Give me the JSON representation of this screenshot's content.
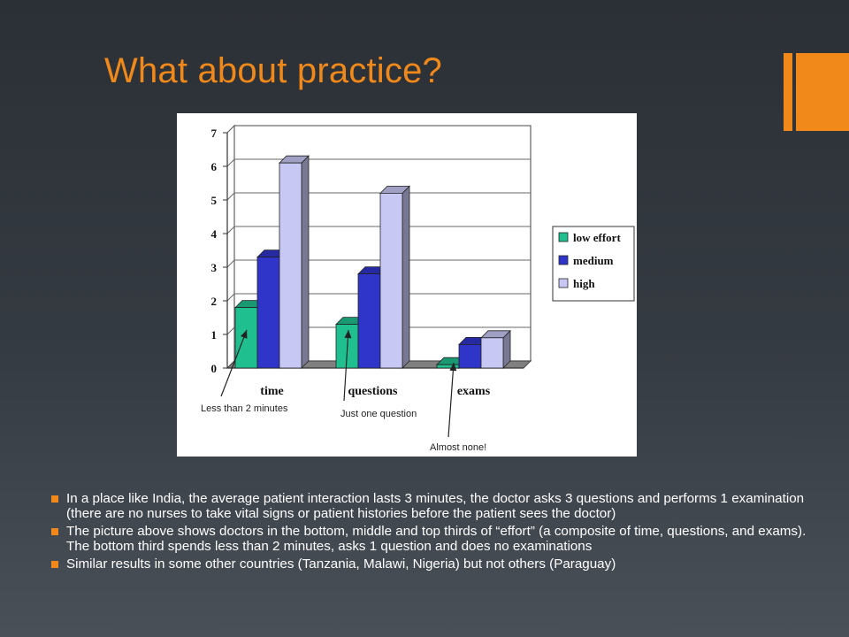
{
  "slide": {
    "title": "What about practice?",
    "accent_color": "#f0891a",
    "bullets": [
      "In a place like India, the average patient interaction lasts 3 minutes, the doctor asks 3 questions and performs 1 examination (there are no nurses to take vital signs or patient histories before the patient sees the doctor)",
      "The picture above shows doctors in the bottom, middle and top thirds of “effort” (a composite of time, questions, and exams). The bottom third spends less than 2 minutes, asks 1 question and does no examinations",
      "Similar results in some other countries (Tanzania, Malawi, Nigeria) but not others (Paraguay)"
    ]
  },
  "chart_data": {
    "type": "bar",
    "categories": [
      "time",
      "questions",
      "exams"
    ],
    "series": [
      {
        "name": "low effort",
        "values": [
          1.8,
          1.3,
          0.1
        ],
        "color": "#1fbf8f"
      },
      {
        "name": "medium",
        "values": [
          3.3,
          2.8,
          0.7
        ],
        "color": "#2f35c8"
      },
      {
        "name": "high",
        "values": [
          6.1,
          5.2,
          0.9
        ],
        "color": "#c8c8f5"
      }
    ],
    "yticks": [
      0,
      1,
      2,
      3,
      4,
      5,
      6,
      7
    ],
    "ylim": [
      0,
      7
    ],
    "legend_position": "right",
    "annotations": [
      {
        "text": "Less than 2 minutes",
        "category": "time"
      },
      {
        "text": "Just one question",
        "category": "questions"
      },
      {
        "text": "Almost none!",
        "category": "exams"
      }
    ]
  }
}
